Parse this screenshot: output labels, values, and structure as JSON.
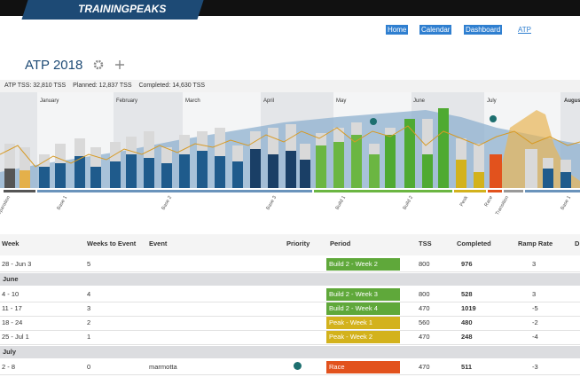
{
  "header": {
    "logo": "TRAININGPEAKS",
    "nav": [
      "Home",
      "Calendar",
      "Dashboard",
      "ATP"
    ]
  },
  "page": {
    "title": "ATP 2018"
  },
  "stats": {
    "atp": "ATP TSS: 32,810 TSS",
    "planned": "Planned: 12,837 TSS",
    "completed": "Completed: 14,630 TSS"
  },
  "chart": {
    "months": [
      "January",
      "February",
      "March",
      "April",
      "May",
      "June",
      "July",
      "August"
    ],
    "phases": [
      "Preparation",
      "Base 1",
      "Base 2",
      "Base 3",
      "Build 1",
      "Build 2",
      "Peak",
      "Race",
      "Transition",
      "Base 1"
    ]
  },
  "table": {
    "columns": [
      "Week",
      "Weeks to Event",
      "Event",
      "Priority",
      "Period",
      "TSS",
      "Completed",
      "Ramp Rate",
      "D"
    ],
    "rows": [
      {
        "week": "28 - Jun 3",
        "weeks_to_event": "5",
        "event": "",
        "period": "Build 2 - Week 2",
        "period_color": "#5fa83a",
        "tss": "800",
        "completed": "976",
        "ramp_rate": "3"
      },
      {
        "group": "June"
      },
      {
        "week": "4 - 10",
        "weeks_to_event": "4",
        "event": "",
        "period": "Build 2 - Week 3",
        "period_color": "#5fa83a",
        "tss": "800",
        "completed": "528",
        "ramp_rate": "3"
      },
      {
        "week": "11 - 17",
        "weeks_to_event": "3",
        "event": "",
        "period": "Build 2 - Week 4",
        "period_color": "#5fa83a",
        "tss": "470",
        "completed": "1019",
        "ramp_rate": "-5"
      },
      {
        "week": "18 - 24",
        "weeks_to_event": "2",
        "event": "",
        "period": "Peak - Week 1",
        "period_color": "#d3b21c",
        "tss": "560",
        "completed": "480",
        "ramp_rate": "-2"
      },
      {
        "week": "25 - Jul 1",
        "weeks_to_event": "1",
        "event": "",
        "period": "Peak - Week 2",
        "period_color": "#d3b21c",
        "tss": "470",
        "completed": "248",
        "ramp_rate": "-4"
      },
      {
        "group": "July"
      },
      {
        "week": "2 - 8",
        "weeks_to_event": "0",
        "event": "marmotta",
        "trophy": true,
        "period": "Race",
        "period_color": "#e2521d",
        "tss": "470",
        "completed": "511",
        "ramp_rate": "-3"
      }
    ]
  }
}
